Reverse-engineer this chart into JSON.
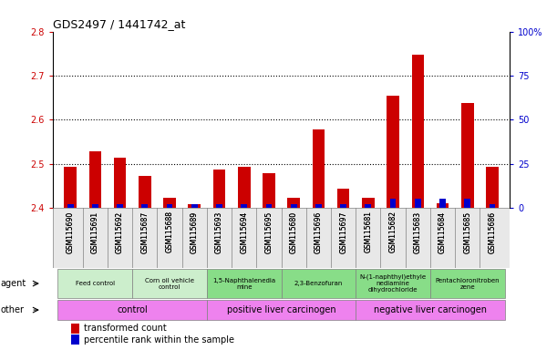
{
  "title": "GDS2497 / 1441742_at",
  "samples": [
    "GSM115690",
    "GSM115691",
    "GSM115692",
    "GSM115687",
    "GSM115688",
    "GSM115689",
    "GSM115693",
    "GSM115694",
    "GSM115695",
    "GSM115680",
    "GSM115696",
    "GSM115697",
    "GSM115681",
    "GSM115682",
    "GSM115683",
    "GSM115684",
    "GSM115685",
    "GSM115686"
  ],
  "red_values": [
    2.493,
    2.529,
    2.513,
    2.473,
    2.423,
    2.408,
    2.487,
    2.493,
    2.479,
    2.423,
    2.578,
    2.443,
    2.423,
    2.655,
    2.748,
    2.41,
    2.638,
    2.493
  ],
  "blue_values": [
    2,
    2,
    2,
    2,
    2,
    2,
    2,
    2,
    2,
    2,
    2,
    2,
    2,
    5,
    5,
    5,
    5,
    2
  ],
  "ylim_left": [
    2.4,
    2.8
  ],
  "ylim_right": [
    0,
    100
  ],
  "yticks_left": [
    2.4,
    2.5,
    2.6,
    2.7,
    2.8
  ],
  "yticks_right": [
    0,
    25,
    50,
    75,
    100
  ],
  "ytick_labels_right": [
    "0",
    "25",
    "50",
    "75",
    "100%"
  ],
  "agent_groups": [
    {
      "label": "Feed control",
      "start": 0,
      "end": 3,
      "color": "#cceecc"
    },
    {
      "label": "Corn oil vehicle\ncontrol",
      "start": 3,
      "end": 6,
      "color": "#cceecc"
    },
    {
      "label": "1,5-Naphthalenedia\nmine",
      "start": 6,
      "end": 9,
      "color": "#88dd88"
    },
    {
      "label": "2,3-Benzofuran",
      "start": 9,
      "end": 12,
      "color": "#88dd88"
    },
    {
      "label": "N-(1-naphthyl)ethyle\nnediamine\ndihydrochloride",
      "start": 12,
      "end": 15,
      "color": "#88dd88"
    },
    {
      "label": "Pentachloronitroben\nzene",
      "start": 15,
      "end": 18,
      "color": "#88dd88"
    }
  ],
  "other_groups": [
    {
      "label": "control",
      "start": 0,
      "end": 6,
      "color": "#ee82ee"
    },
    {
      "label": "positive liver carcinogen",
      "start": 6,
      "end": 12,
      "color": "#ee82ee"
    },
    {
      "label": "negative liver carcinogen",
      "start": 12,
      "end": 18,
      "color": "#ee82ee"
    }
  ],
  "legend_red": "transformed count",
  "legend_blue": "percentile rank within the sample",
  "red_color": "#cc0000",
  "blue_color": "#0000cc",
  "bg_color": "#ffffff",
  "left_tick_color": "#cc0000",
  "right_tick_color": "#0000cc"
}
